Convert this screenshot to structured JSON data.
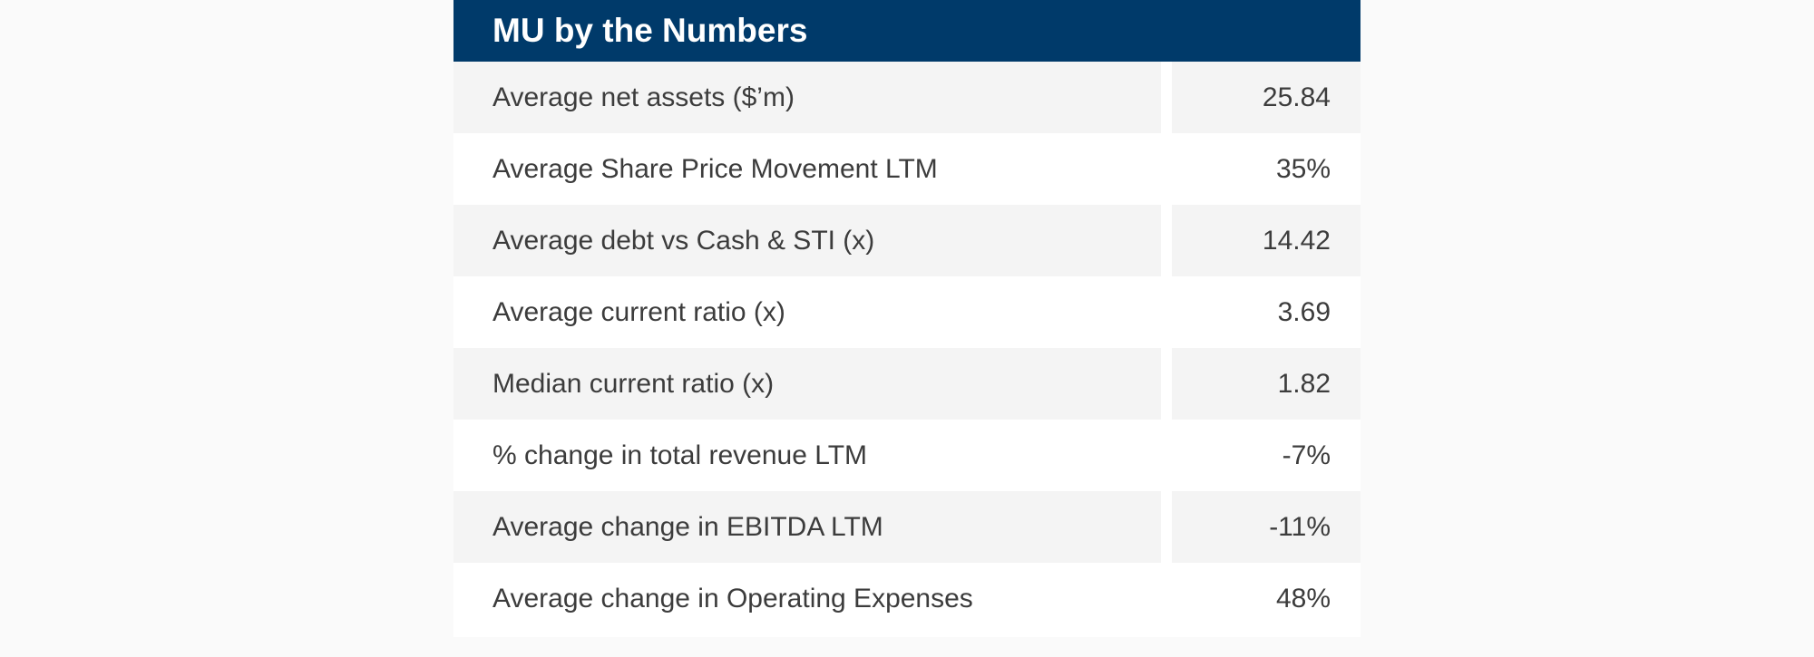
{
  "table": {
    "title": "MU by the Numbers",
    "rows": [
      {
        "label": "Average net assets ($’m)",
        "value": "25.84"
      },
      {
        "label": "Average Share Price Movement LTM",
        "value": "35%"
      },
      {
        "label": "Average debt vs Cash & STI (x)",
        "value": "14.42"
      },
      {
        "label": "Average current ratio (x)",
        "value": "3.69"
      },
      {
        "label": "Median current ratio (x)",
        "value": "1.82"
      },
      {
        "label": "% change in total revenue LTM",
        "value": "-7%"
      },
      {
        "label": "Average change in EBITDA LTM",
        "value": "-11%"
      },
      {
        "label": "Average change in Operating Expenses",
        "value": "48%"
      }
    ]
  },
  "colors": {
    "header_bg": "#003a6a",
    "shaded_row": "#f4f4f4",
    "text": "#3c3c3c"
  }
}
